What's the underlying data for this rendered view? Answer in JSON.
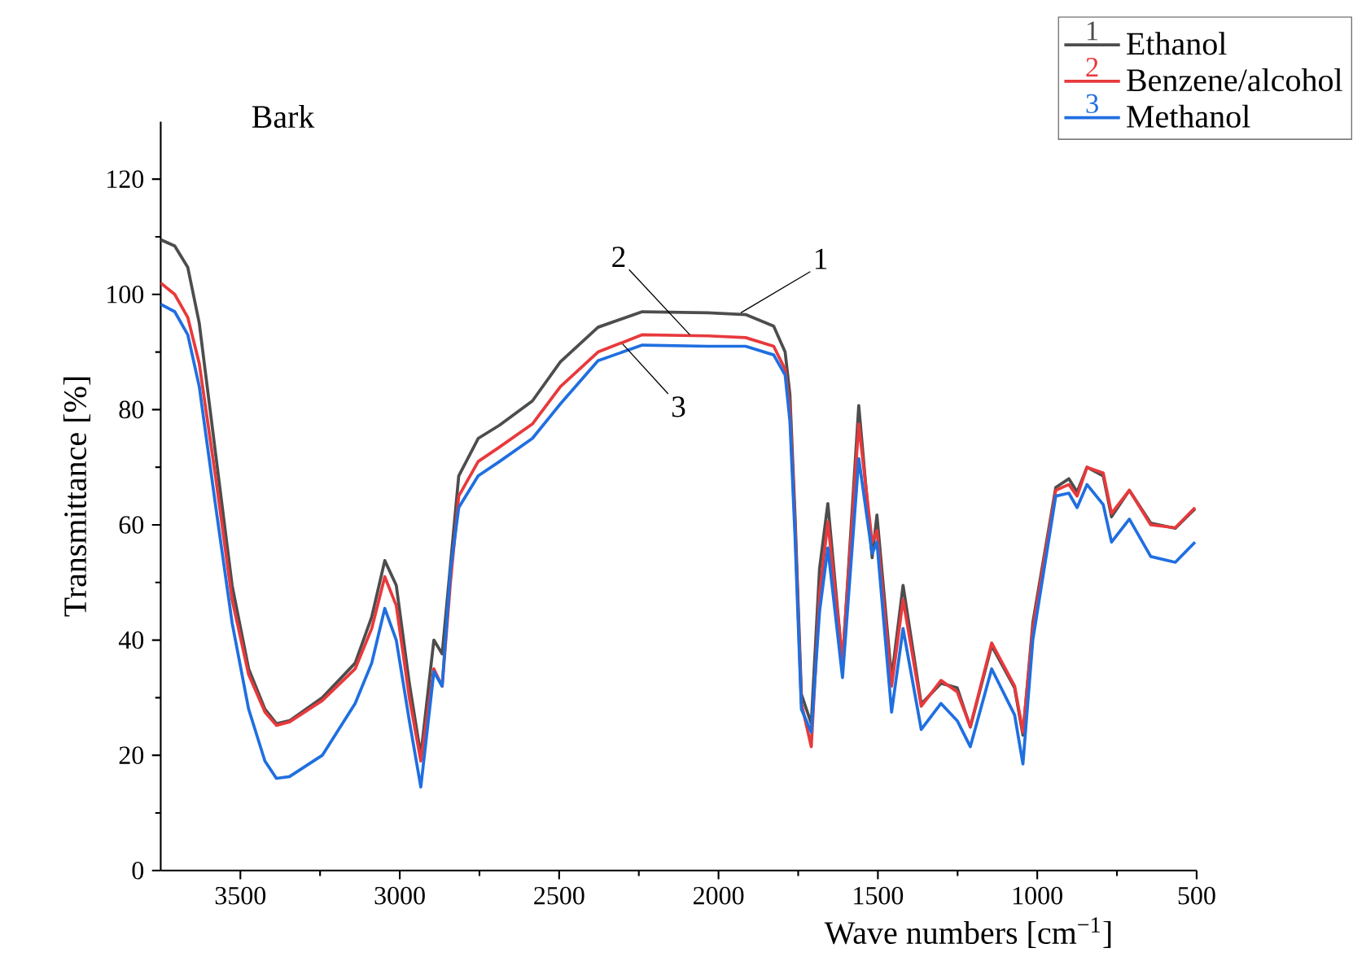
{
  "chart_data": {
    "type": "line",
    "title": "Bark",
    "xlabel": "Wave numbers [cm$^{−1}$]",
    "ylabel": "Transmittance [%]",
    "x": [
      3750,
      3706,
      3665,
      3629,
      3577,
      3526,
      3474,
      3423,
      3387,
      3346,
      3243,
      3140,
      3088,
      3047,
      3011,
      2970,
      2934,
      2893,
      2867,
      2841,
      2815,
      2754,
      2687,
      2584,
      2496,
      2378,
      2239,
      2033,
      1915,
      1827,
      1791,
      1776,
      1760,
      1740,
      1709,
      1683,
      1657,
      1611,
      1560,
      1518,
      1503,
      1457,
      1421,
      1364,
      1302,
      1251,
      1210,
      1143,
      1071,
      1045,
      1014,
      942,
      901,
      875,
      844,
      793,
      767,
      711,
      644,
      567,
      505
    ],
    "series": [
      {
        "name": "Ethanol",
        "color": "#4d4d4d",
        "values": [
          109.5,
          108.4,
          104.7,
          95,
          72,
          49.5,
          35,
          28,
          25.5,
          26,
          30,
          36,
          44,
          53.8,
          49.5,
          32.5,
          20,
          40,
          37.6,
          53,
          68.5,
          75,
          77.3,
          81.5,
          88.3,
          94.3,
          97,
          96.8,
          96.5,
          94.5,
          90,
          82.6,
          61.7,
          30.6,
          25.5,
          52.4,
          63.7,
          36,
          80.7,
          54.3,
          61.7,
          33.4,
          49.5,
          28.9,
          32.5,
          31.7,
          24.9,
          39,
          31.7,
          23.5,
          43,
          66.5,
          68,
          65.7,
          70,
          68.5,
          61.4,
          66,
          60.3,
          59.4,
          62.8
        ]
      },
      {
        "name": "Benzene/alcohol",
        "color": "#e8393c",
        "values": [
          102,
          100,
          96,
          88,
          68,
          47,
          34,
          27.5,
          25.2,
          25.8,
          29.5,
          35,
          42,
          51,
          46,
          30,
          19,
          35,
          32,
          50,
          65,
          71,
          73.5,
          77.5,
          84,
          90,
          93,
          92.8,
          92.5,
          91,
          87,
          80,
          60,
          29,
          21.5,
          48,
          60.5,
          36.5,
          77.5,
          57,
          59,
          32,
          47,
          28.5,
          33,
          31,
          25,
          39.5,
          32,
          24,
          42,
          66,
          67,
          65,
          70,
          69,
          62,
          66,
          60,
          59.5,
          63
        ]
      },
      {
        "name": "Methanol",
        "color": "#1f6fe0",
        "values": [
          98.3,
          97,
          93,
          84,
          63,
          43,
          28,
          19,
          16,
          16.3,
          20,
          29,
          36,
          45.5,
          40,
          26,
          14.5,
          34.5,
          32,
          52,
          63,
          68.5,
          71,
          75,
          81,
          88.5,
          91.2,
          91,
          91,
          89.5,
          86,
          78,
          58,
          28,
          24,
          45,
          56,
          33.5,
          71.5,
          55,
          57,
          27.5,
          42,
          24.5,
          29,
          26,
          21.5,
          35,
          27,
          18.5,
          40,
          65,
          65.5,
          63,
          67,
          63.5,
          57,
          61,
          54.5,
          53.5,
          57
        ]
      }
    ],
    "annotations": [
      {
        "text": "1",
        "x": 1930,
        "y": 96.8
      },
      {
        "text": "2",
        "x": 2090,
        "y": 93
      },
      {
        "text": "3",
        "x": 2301,
        "y": 91.4
      }
    ],
    "xlim": [
      3750,
      500
    ],
    "xticks": [
      3500,
      3000,
      2500,
      2000,
      1500,
      1000,
      500
    ],
    "ylim": [
      0,
      130
    ],
    "yticks": [
      0,
      20,
      40,
      60,
      80,
      100,
      120
    ],
    "grid": false,
    "legend": "top right",
    "marker": "none",
    "line_style": "solid"
  }
}
